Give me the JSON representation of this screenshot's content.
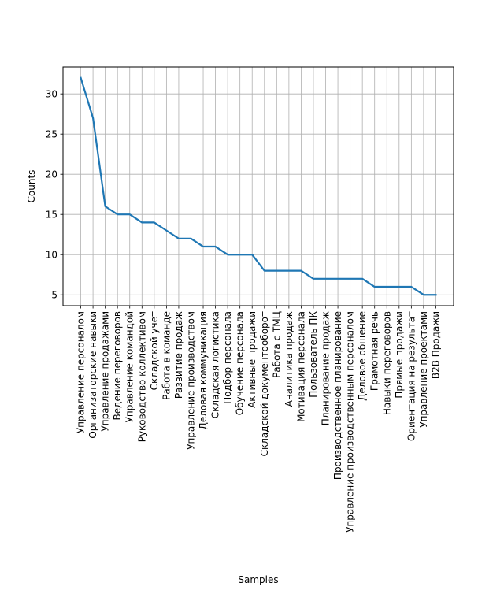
{
  "chart_data": {
    "type": "line",
    "xlabel": "Samples",
    "ylabel": "Counts",
    "grid": true,
    "ylim": [
      3.65,
      33.35
    ],
    "yticks": [
      5,
      10,
      15,
      20,
      25,
      30
    ],
    "line_color": "#1f77b4",
    "categories": [
      "Управление персоналом",
      "Организаторские навыки",
      "Управление продажами",
      "Ведение переговоров",
      "Управление командой",
      "Руководство коллективом",
      "Складской учет",
      "Работа в команде",
      "Развитие продаж",
      "Управление производством",
      "Деловая коммуникация",
      "Складская логистика",
      "Подбор персонала",
      "Обучение персонала",
      "Активные продажи",
      "Складской документооборот",
      "Работа с ТМЦ",
      "Аналитика продаж",
      "Мотивация персонала",
      "Пользователь ПК",
      "Планирование продаж",
      "Производственное планирование",
      "Управление производственным персоналом",
      "Деловое общение",
      "Грамотная речь",
      "Навыки переговоров",
      "Прямые продажи",
      "Ориентация на результат",
      "Управление проектами",
      "B2B Продажи"
    ],
    "values": [
      32,
      27,
      16,
      15,
      15,
      14,
      14,
      13,
      12,
      12,
      11,
      11,
      10,
      10,
      10,
      8,
      8,
      8,
      8,
      7,
      7,
      7,
      7,
      7,
      6,
      6,
      6,
      6,
      5,
      5
    ]
  }
}
